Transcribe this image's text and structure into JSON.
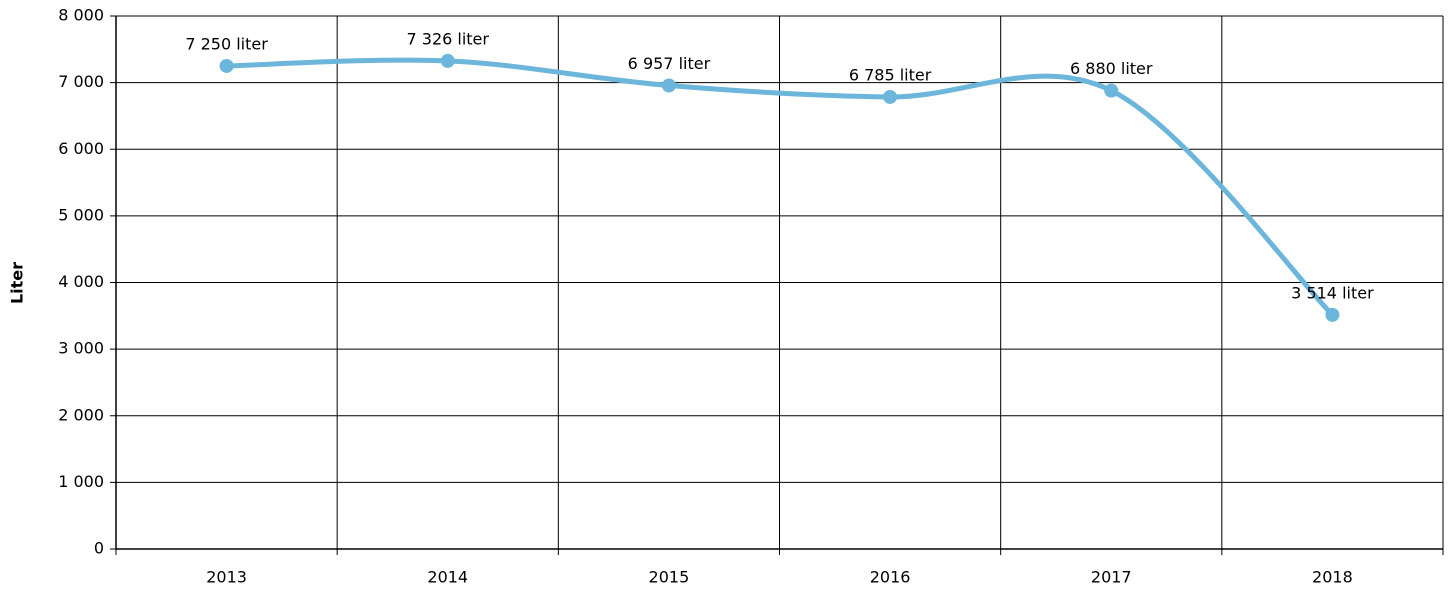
{
  "chart_data": {
    "type": "line",
    "y_label": "Liter",
    "categories": [
      "2013",
      "2014",
      "2015",
      "2016",
      "2017",
      "2018"
    ],
    "series": [
      {
        "name": "Liter",
        "color": "#6cb6dc",
        "values": [
          7250,
          7326,
          6957,
          6785,
          6880,
          3514
        ],
        "value_labels": [
          "7 250 liter",
          "7 326 liter",
          "6 957 liter",
          "6 785 liter",
          "6 880 liter",
          "3 514 liter"
        ]
      }
    ],
    "ylim": [
      0,
      8000
    ],
    "yticks": [
      0,
      {
        "value": 1000,
        "label": "1 000"
      },
      {
        "value": 2000,
        "label": "2 000"
      },
      {
        "value": 3000,
        "label": "3 000"
      },
      {
        "value": 4000,
        "label": "4 000"
      },
      {
        "value": 5000,
        "label": "5 000"
      },
      {
        "value": 6000,
        "label": "6 000"
      },
      {
        "value": 7000,
        "label": "7 000"
      },
      {
        "value": 8000,
        "label": "8 000"
      }
    ],
    "grid": true
  }
}
